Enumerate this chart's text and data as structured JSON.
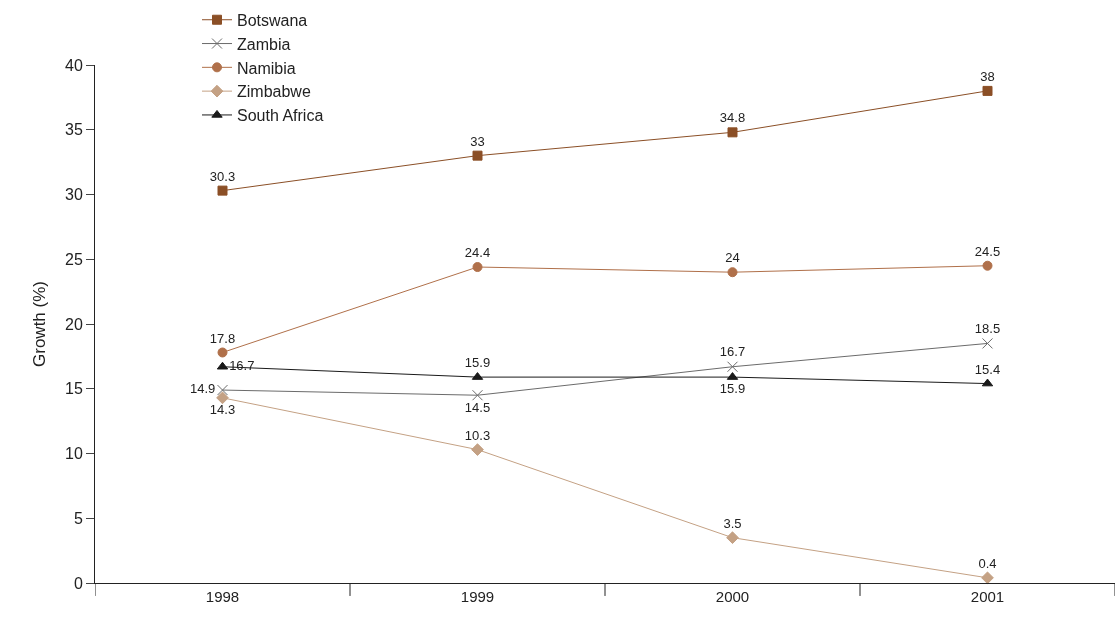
{
  "chart_data": {
    "type": "line",
    "ylabel": "Growth (%)",
    "categories": [
      "1998",
      "1999",
      "2000",
      "2001"
    ],
    "series": [
      {
        "name": "Botswana",
        "color": "#8b4f26",
        "marker": "square",
        "values": [
          30.3,
          33,
          34.8,
          38
        ]
      },
      {
        "name": "Zambia",
        "color": "#6b6b6b",
        "marker": "cross",
        "values": [
          14.9,
          14.5,
          16.7,
          18.5
        ]
      },
      {
        "name": "Namibia",
        "color": "#b0704a",
        "marker": "circle",
        "values": [
          17.8,
          24.4,
          24,
          24.5
        ]
      },
      {
        "name": "Zimbabwe",
        "color": "#c4a184",
        "marker": "diamond",
        "values": [
          14.3,
          10.3,
          3.5,
          0.4
        ]
      },
      {
        "name": "South Africa",
        "color": "#1a1a1a",
        "marker": "triangle",
        "values": [
          16.7,
          15.9,
          15.9,
          15.4
        ]
      }
    ],
    "ylim": [
      0,
      40
    ],
    "yticks": [
      0,
      5,
      10,
      15,
      20,
      25,
      30,
      35,
      40
    ],
    "legend": "top left",
    "data_labels": true
  }
}
